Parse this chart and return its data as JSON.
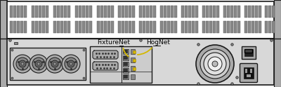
{
  "bg_color": "#ffffff",
  "chassis_top_bg": "#e8e8e8",
  "chassis_bot_bg": "#d8d8d8",
  "chassis_side_color": "#b8b8b8",
  "border_color": "#1a1a1a",
  "vent_fill": "#888888",
  "vent_edge": "#555555",
  "label_fixturenet": "FixtureNet",
  "label_hognet": "HogNet",
  "arrow_color": "#d4b800",
  "text_color": "#000000",
  "connector_bg": "#cccccc",
  "connector_border": "#1a1a1a",
  "xlr_bg": "#bbbbbb",
  "dial_rings": [
    "#bbbbbb",
    "#d4d4d4",
    "#e0e0e0"
  ],
  "fig_width": 4.0,
  "fig_height": 1.24,
  "dpi": 100,
  "slot_groups": [
    [
      14,
      19,
      24,
      29,
      34
    ],
    [
      45,
      50,
      55,
      60,
      65
    ],
    [
      76,
      81,
      86,
      91,
      96
    ],
    [
      107,
      112,
      117,
      122,
      127
    ],
    [
      138,
      143,
      148,
      153,
      158
    ],
    [
      168,
      173,
      178,
      183,
      188
    ],
    [
      198,
      203,
      208,
      213,
      218
    ],
    [
      228,
      233,
      238,
      243,
      248
    ],
    [
      258,
      263,
      268,
      273,
      278
    ],
    [
      288,
      293,
      298,
      303,
      308
    ],
    [
      318,
      323,
      328,
      333,
      338
    ],
    [
      348,
      353,
      358,
      363,
      368
    ],
    [
      377,
      382,
      387
    ]
  ]
}
